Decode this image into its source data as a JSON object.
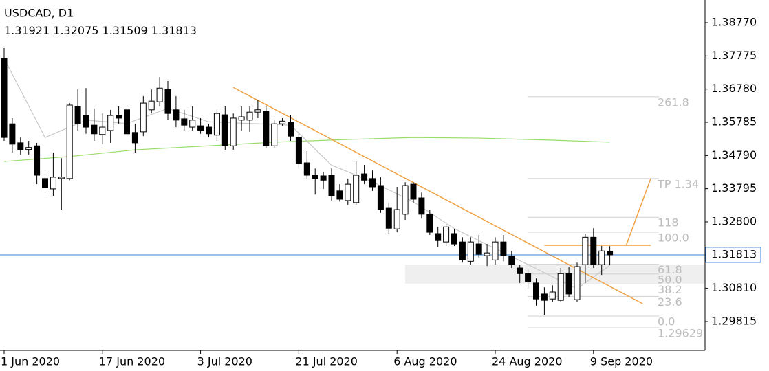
{
  "chart_data": {
    "type": "candlestick",
    "title": "USDCAD, D1",
    "categories": [
      "1 Jun 2020",
      null,
      null,
      null,
      null,
      null,
      null,
      null,
      null,
      null,
      null,
      null,
      "17 Jun 2020",
      null,
      null,
      null,
      null,
      null,
      null,
      null,
      null,
      null,
      null,
      null,
      "3 Jul 2020",
      null,
      null,
      null,
      null,
      null,
      null,
      null,
      null,
      null,
      null,
      null,
      "21 Jul 2020",
      null,
      null,
      null,
      null,
      null,
      null,
      null,
      null,
      null,
      null,
      null,
      "6 Aug 2020",
      null,
      null,
      null,
      null,
      null,
      null,
      null,
      null,
      null,
      null,
      null,
      "24 Aug 2020",
      null,
      null,
      null,
      null,
      null,
      null,
      null,
      null,
      null,
      null,
      null,
      "9 Sep 2020",
      null,
      null
    ],
    "open": [
      1.377,
      1.3574,
      1.3517,
      1.3497,
      1.3508,
      1.341,
      1.3379,
      1.341,
      1.341,
      1.3626,
      1.3599,
      1.357,
      1.3542,
      1.3554,
      1.3599,
      1.3616,
      1.3548,
      1.355,
      1.3616,
      1.364,
      1.3677,
      1.3616,
      1.3589,
      1.3564,
      1.3568,
      1.3564,
      1.354,
      1.3601,
      1.3508,
      1.3585,
      1.3585,
      1.3609,
      1.3612,
      1.3508,
      1.3574,
      1.3579,
      1.3533,
      1.3457,
      1.342,
      1.3418,
      1.342,
      1.3373,
      1.3344,
      1.3338,
      1.3424,
      1.341,
      1.3389,
      1.3321,
      1.3259,
      1.3303,
      1.3393,
      1.3352,
      1.3303,
      1.3245,
      1.322,
      1.3245,
      1.322,
      1.3162,
      1.3214,
      1.3179,
      1.3166,
      1.322,
      1.3177,
      1.3142,
      1.3125,
      1.3097,
      1.3064,
      1.3049,
      1.3045,
      1.3125,
      1.3047,
      1.3152,
      1.3234,
      1.3152,
      1.31921
    ],
    "high": [
      1.3801,
      1.3591,
      1.3533,
      1.3523,
      1.3517,
      1.343,
      1.3488,
      1.3471,
      1.3636,
      1.3677,
      1.3681,
      1.362,
      1.3605,
      1.3616,
      1.3626,
      1.3626,
      1.3574,
      1.3657,
      1.3677,
      1.3714,
      1.3702,
      1.3657,
      1.3616,
      1.3626,
      1.3591,
      1.3574,
      1.3616,
      1.3626,
      1.3605,
      1.3626,
      1.3626,
      1.3646,
      1.3626,
      1.3585,
      1.3591,
      1.3599,
      1.3544,
      1.3492,
      1.344,
      1.343,
      1.344,
      1.3393,
      1.341,
      1.3461,
      1.3451,
      1.3434,
      1.3414,
      1.3338,
      1.3385,
      1.3399,
      1.3399,
      1.3368,
      1.3317,
      1.3265,
      1.3274,
      1.3259,
      1.3234,
      1.3234,
      1.3241,
      1.3214,
      1.3234,
      1.3241,
      1.3193,
      1.3152,
      1.3138,
      1.3111,
      1.3084,
      1.309,
      1.3142,
      1.3146,
      1.3158,
      1.3245,
      1.3261,
      1.3208,
      1.32075
    ],
    "low": [
      1.3523,
      1.3488,
      1.3482,
      1.3482,
      1.3393,
      1.3362,
      1.3358,
      1.3317,
      1.3405,
      1.3554,
      1.3544,
      1.3523,
      1.3513,
      1.3517,
      1.3574,
      1.3517,
      1.3488,
      1.3537,
      1.3605,
      1.3626,
      1.3585,
      1.3564,
      1.3554,
      1.3554,
      1.3544,
      1.3533,
      1.3523,
      1.3496,
      1.3496,
      1.3554,
      1.355,
      1.3591,
      1.3502,
      1.3502,
      1.3568,
      1.3523,
      1.344,
      1.341,
      1.3362,
      1.3379,
      1.3344,
      1.3341,
      1.3331,
      1.3331,
      1.3393,
      1.3373,
      1.3307,
      1.3245,
      1.3249,
      1.3286,
      1.3338,
      1.329,
      1.3241,
      1.3204,
      1.3208,
      1.3208,
      1.3158,
      1.3152,
      1.3173,
      1.3148,
      1.3152,
      1.3162,
      1.3142,
      1.3097,
      1.308,
      1.3029,
      1.3002,
      1.3039,
      1.3039,
      1.3055,
      1.3039,
      1.3097,
      1.3142,
      1.3121,
      1.31509
    ],
    "close": [
      1.3533,
      1.3513,
      1.3496,
      1.3503,
      1.342,
      1.3383,
      1.3414,
      1.3414,
      1.363,
      1.3574,
      1.3564,
      1.3544,
      1.3564,
      1.3599,
      1.3591,
      1.3544,
      1.3517,
      1.3636,
      1.3642,
      1.3681,
      1.3605,
      1.3585,
      1.357,
      1.3585,
      1.3554,
      1.3544,
      1.3605,
      1.3508,
      1.3591,
      1.3595,
      1.3609,
      1.3616,
      1.3508,
      1.3574,
      1.3582,
      1.3537,
      1.3455,
      1.342,
      1.341,
      1.3405,
      1.3358,
      1.3348,
      1.3393,
      1.342,
      1.3405,
      1.3385,
      1.3317,
      1.3261,
      1.3317,
      1.3389,
      1.3348,
      1.3303,
      1.3249,
      1.3224,
      1.3265,
      1.3214,
      1.3166,
      1.322,
      1.3183,
      1.3187,
      1.322,
      1.3179,
      1.3152,
      1.3125,
      1.3101,
      1.3049,
      1.3045,
      1.307,
      1.3125,
      1.3064,
      1.3146,
      1.3234,
      1.3152,
      1.3193,
      1.31813
    ],
    "ylim": [
      1.2895,
      1.3945
    ],
    "yticks": [
      {
        "value": 1.3877,
        "label": "1.38770"
      },
      1.37775,
      {
        "value": 1.3678,
        "label": "1.36780"
      },
      1.35785,
      {
        "value": 1.3479,
        "label": "1.34790"
      },
      1.33795,
      {
        "value": 1.328,
        "label": "1.32800"
      },
      {
        "value": 1.3081,
        "label": "1.30810"
      },
      1.29815
    ],
    "moving_averages": [
      {
        "color": "#98dc68",
        "x": [
          0,
          8,
          16,
          25,
          33,
          42,
          50,
          58,
          67,
          74
        ],
        "values": [
          1.3461,
          1.3476,
          1.3496,
          1.3508,
          1.3519,
          1.3527,
          1.3533,
          1.3531,
          1.3525,
          1.3519
        ]
      },
      {
        "color": "#c8c8c8",
        "x": [
          0,
          5,
          10,
          15,
          20,
          25,
          30,
          35,
          40,
          45,
          50,
          55,
          60,
          65,
          70,
          74
        ],
        "values": [
          1.377,
          1.3533,
          1.3585,
          1.3575,
          1.362,
          1.358,
          1.3575,
          1.357,
          1.345,
          1.34,
          1.334,
          1.326,
          1.32,
          1.314,
          1.308,
          1.315
        ]
      }
    ],
    "trend_line": {
      "color": "#f0a040",
      "x": [
        28,
        78
      ],
      "values": [
        1.3683,
        1.3035
      ]
    },
    "target_lines": [
      {
        "x": [
          66,
          79
        ],
        "values": [
          1.321,
          1.321
        ]
      },
      {
        "x": [
          76,
          79
        ],
        "values": [
          1.321,
          1.341
        ]
      }
    ],
    "zone": {
      "x": [
        49,
        86
      ],
      "values": [
        1.3095,
        1.3152
      ]
    },
    "fib_x": [
      64,
      80
    ],
    "fib_levels": [
      {
        "label": "261.8",
        "value": 1.3655
      },
      {
        "label": "TP 1.34",
        "value": 1.341
      },
      {
        "label": "118",
        "value": 1.3294
      },
      {
        "label": "100.0",
        "value": 1.3249
      },
      {
        "label": "61.8",
        "value": 1.3153
      },
      {
        "label": "50.0",
        "value": 1.3124
      },
      {
        "label": "38.2",
        "value": 1.3094
      },
      {
        "label": "23.6",
        "value": 1.3057
      },
      {
        "label": "0.0",
        "value": 1.2998
      },
      {
        "label": "1.29629",
        "value": 1.29629
      }
    ]
  }
}
